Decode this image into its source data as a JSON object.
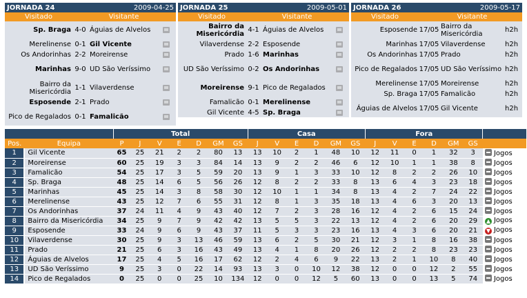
{
  "jornadas": [
    {
      "title": "JORNADA 24",
      "date": "2009-04-25",
      "col_home": "Visitado",
      "col_away": "Visitante",
      "games": [
        {
          "home": "Sp. Braga",
          "home_bold": true,
          "score": "4-0",
          "away": "Águias de Alvelos",
          "away_bold": false
        },
        {
          "home": "Merelinense",
          "home_bold": false,
          "score": "0-1",
          "away": "Gil Vicente",
          "away_bold": true
        },
        {
          "home": "Os Andorinhas",
          "home_bold": false,
          "score": "2-2",
          "away": "Moreirense",
          "away_bold": false
        },
        {
          "home": "Marinhas",
          "home_bold": true,
          "score": "9-0",
          "away": "UD São Veríssimo",
          "away_bold": false
        },
        {
          "home": "Bairro da Misericórdia",
          "home_bold": false,
          "score": "1-1",
          "away": "Vilaverdense",
          "away_bold": false
        },
        {
          "home": "Esposende",
          "home_bold": true,
          "score": "2-1",
          "away": "Prado",
          "away_bold": false
        },
        {
          "home": "Pico de Regalados",
          "home_bold": false,
          "score": "0-1",
          "away": "Famalicão",
          "away_bold": true
        }
      ]
    },
    {
      "title": "JORNADA 25",
      "date": "2009-05-01",
      "col_home": "Visitado",
      "col_away": "Visitante",
      "games": [
        {
          "home": "Bairro da Misericórdia",
          "home_bold": true,
          "score": "4-1",
          "away": "Águias de Alvelos",
          "away_bold": false
        },
        {
          "home": "Vilaverdense",
          "home_bold": false,
          "score": "2-2",
          "away": "Esposende",
          "away_bold": false
        },
        {
          "home": "Prado",
          "home_bold": false,
          "score": "1-6",
          "away": "Marinhas",
          "away_bold": true
        },
        {
          "home": "UD São Veríssimo",
          "home_bold": false,
          "score": "0-2",
          "away": "Os Andorinhas",
          "away_bold": true
        },
        {
          "home": "Moreirense",
          "home_bold": true,
          "score": "9-1",
          "away": "Pico de Regalados",
          "away_bold": false
        },
        {
          "home": "Famalicão",
          "home_bold": false,
          "score": "0-1",
          "away": "Merelinense",
          "away_bold": true
        },
        {
          "home": "Gil Vicente",
          "home_bold": false,
          "score": "4-5",
          "away": "Sp. Braga",
          "away_bold": true
        }
      ]
    },
    {
      "title": "JORNADA 26",
      "date": "2009-05-17",
      "col_home": "Visitado",
      "col_away": "Visitante",
      "games": [
        {
          "home": "Esposende",
          "score": "17/05",
          "away": "Bairro da Misericórdia",
          "extra": "h2h"
        },
        {
          "home": "Marinhas",
          "score": "17/05",
          "away": "Vilaverdense",
          "extra": "h2h"
        },
        {
          "home": "Os Andorinhas",
          "score": "17/05",
          "away": "Prado",
          "extra": "h2h"
        },
        {
          "home": "Pico de Regalados",
          "score": "17/05",
          "away": "UD São Veríssimo",
          "extra": "h2h"
        },
        {
          "home": "Merelinense",
          "score": "17/05",
          "away": "Moreirense",
          "extra": "h2h"
        },
        {
          "home": "Sp. Braga",
          "score": "17/05",
          "away": "Famalicão",
          "extra": "h2h"
        },
        {
          "home": "Águias de Alvelos",
          "score": "17/05",
          "away": "Gil Vicente",
          "extra": "h2h"
        }
      ]
    }
  ],
  "standings": {
    "groups": {
      "total": "Total",
      "casa": "Casa",
      "fora": "Fora"
    },
    "headers": [
      "Pos.",
      "Equipa",
      "P",
      "J",
      "V",
      "E",
      "D",
      "GM",
      "GS",
      "J",
      "V",
      "E",
      "D",
      "GM",
      "GS",
      "J",
      "V",
      "E",
      "D",
      "GM",
      "GS"
    ],
    "link_label": "Jogos",
    "rows": [
      {
        "pos": "1",
        "team": "Gil Vicente",
        "p": "65",
        "t": [
          "25",
          "21",
          "2",
          "2",
          "80",
          "13"
        ],
        "c": [
          "13",
          "10",
          "2",
          "1",
          "48",
          "10"
        ],
        "f": [
          "12",
          "11",
          "0",
          "1",
          "32",
          "3"
        ],
        "trend": "eq"
      },
      {
        "pos": "2",
        "team": "Moreirense",
        "p": "60",
        "t": [
          "25",
          "19",
          "3",
          "3",
          "84",
          "14"
        ],
        "c": [
          "13",
          "9",
          "2",
          "2",
          "46",
          "6"
        ],
        "f": [
          "12",
          "10",
          "1",
          "1",
          "38",
          "8"
        ],
        "trend": "eq"
      },
      {
        "pos": "3",
        "team": "Famalicão",
        "p": "54",
        "t": [
          "25",
          "17",
          "3",
          "5",
          "59",
          "20"
        ],
        "c": [
          "13",
          "9",
          "1",
          "3",
          "33",
          "10"
        ],
        "f": [
          "12",
          "8",
          "2",
          "2",
          "26",
          "10"
        ],
        "trend": "eq"
      },
      {
        "pos": "4",
        "team": "Sp. Braga",
        "p": "48",
        "t": [
          "25",
          "14",
          "6",
          "5",
          "56",
          "26"
        ],
        "c": [
          "12",
          "8",
          "2",
          "2",
          "33",
          "8"
        ],
        "f": [
          "13",
          "6",
          "4",
          "3",
          "23",
          "18"
        ],
        "trend": "eq"
      },
      {
        "pos": "5",
        "team": "Marinhas",
        "p": "45",
        "t": [
          "25",
          "14",
          "3",
          "8",
          "58",
          "30"
        ],
        "c": [
          "12",
          "10",
          "1",
          "1",
          "34",
          "8"
        ],
        "f": [
          "13",
          "4",
          "2",
          "7",
          "24",
          "22"
        ],
        "trend": "eq"
      },
      {
        "pos": "6",
        "team": "Merelinense",
        "p": "43",
        "t": [
          "25",
          "12",
          "7",
          "6",
          "55",
          "31"
        ],
        "c": [
          "12",
          "8",
          "1",
          "3",
          "35",
          "18"
        ],
        "f": [
          "13",
          "4",
          "6",
          "3",
          "20",
          "13"
        ],
        "trend": "eq"
      },
      {
        "pos": "7",
        "team": "Os Andorinhas",
        "p": "37",
        "t": [
          "24",
          "11",
          "4",
          "9",
          "43",
          "40"
        ],
        "c": [
          "12",
          "7",
          "2",
          "3",
          "28",
          "16"
        ],
        "f": [
          "12",
          "4",
          "2",
          "6",
          "15",
          "24"
        ],
        "trend": "eq"
      },
      {
        "pos": "8",
        "team": "Bairro da Misericórdia",
        "p": "34",
        "t": [
          "25",
          "9",
          "7",
          "9",
          "42",
          "42"
        ],
        "c": [
          "13",
          "5",
          "5",
          "3",
          "22",
          "13"
        ],
        "f": [
          "12",
          "4",
          "2",
          "6",
          "20",
          "29"
        ],
        "trend": "up"
      },
      {
        "pos": "9",
        "team": "Esposende",
        "p": "33",
        "t": [
          "24",
          "9",
          "6",
          "9",
          "43",
          "37"
        ],
        "c": [
          "11",
          "5",
          "3",
          "3",
          "23",
          "16"
        ],
        "f": [
          "13",
          "4",
          "3",
          "6",
          "20",
          "21"
        ],
        "trend": "down"
      },
      {
        "pos": "10",
        "team": "Vilaverdense",
        "p": "30",
        "t": [
          "25",
          "9",
          "3",
          "13",
          "46",
          "59"
        ],
        "c": [
          "13",
          "6",
          "2",
          "5",
          "30",
          "21"
        ],
        "f": [
          "12",
          "3",
          "1",
          "8",
          "16",
          "38"
        ],
        "trend": "eq"
      },
      {
        "pos": "11",
        "team": "Prado",
        "p": "21",
        "t": [
          "25",
          "6",
          "3",
          "16",
          "43",
          "49"
        ],
        "c": [
          "13",
          "4",
          "1",
          "8",
          "20",
          "26"
        ],
        "f": [
          "12",
          "2",
          "2",
          "8",
          "23",
          "23"
        ],
        "trend": "eq"
      },
      {
        "pos": "12",
        "team": "Águias de Alvelos",
        "p": "17",
        "t": [
          "25",
          "4",
          "5",
          "16",
          "17",
          "62"
        ],
        "c": [
          "12",
          "2",
          "4",
          "6",
          "9",
          "22"
        ],
        "f": [
          "13",
          "2",
          "1",
          "10",
          "8",
          "40"
        ],
        "trend": "eq"
      },
      {
        "pos": "13",
        "team": "UD São Veríssimo",
        "p": "9",
        "t": [
          "25",
          "3",
          "0",
          "22",
          "14",
          "93"
        ],
        "c": [
          "13",
          "3",
          "0",
          "10",
          "12",
          "38"
        ],
        "f": [
          "12",
          "0",
          "0",
          "12",
          "2",
          "55"
        ],
        "trend": "eq"
      },
      {
        "pos": "14",
        "team": "Pico de Regalados",
        "p": "0",
        "t": [
          "25",
          "0",
          "0",
          "25",
          "10",
          "134"
        ],
        "c": [
          "12",
          "0",
          "0",
          "12",
          "5",
          "60"
        ],
        "f": [
          "13",
          "0",
          "0",
          "13",
          "5",
          "74"
        ],
        "trend": "eq"
      }
    ]
  },
  "colors": {
    "navy": "#2a4a6a",
    "orange": "#f29a24",
    "row_bg": "#dde1e8"
  },
  "icons": {
    "tv": "tv-icon",
    "eq": "equal-trend-icon",
    "up": "up-arrow-icon",
    "down": "down-arrow-icon"
  }
}
